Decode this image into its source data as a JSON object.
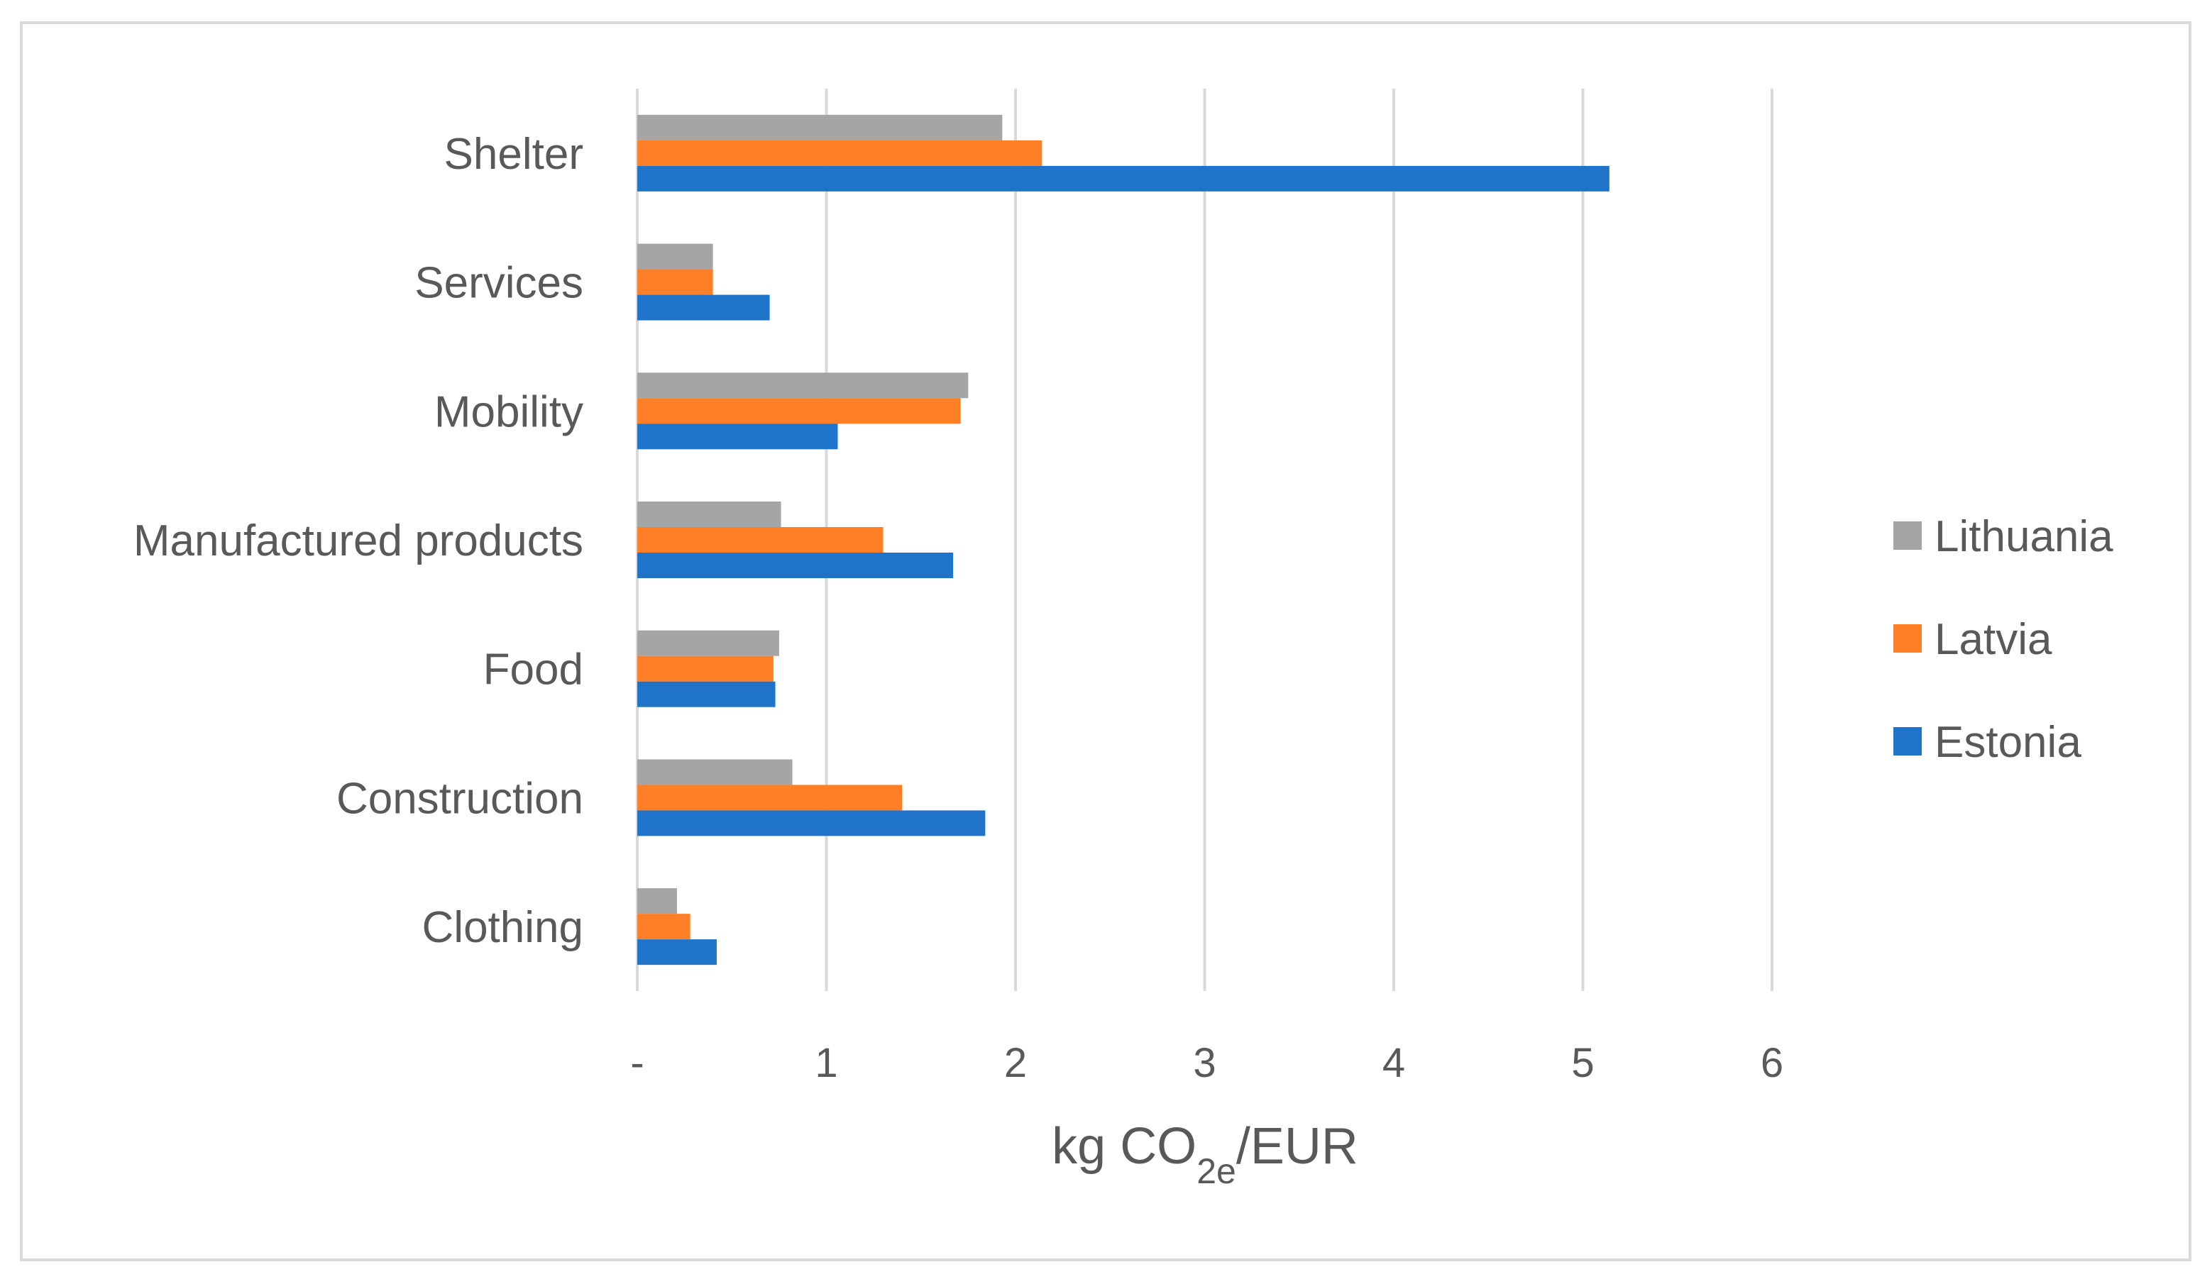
{
  "chart_data": {
    "type": "bar",
    "orientation": "horizontal",
    "title": "",
    "categories": [
      "Clothing",
      "Construction",
      "Food",
      "Manufactured products",
      "Mobility",
      "Services",
      "Shelter"
    ],
    "series": [
      {
        "name": "Estonia",
        "color": "#1f73c9",
        "values": [
          0.42,
          1.84,
          0.73,
          1.67,
          1.06,
          0.7,
          5.14
        ]
      },
      {
        "name": "Latvia",
        "color": "#ff7f27",
        "values": [
          0.28,
          1.4,
          0.72,
          1.3,
          1.71,
          0.4,
          2.14
        ]
      },
      {
        "name": "Lithuania",
        "color": "#a5a5a5",
        "values": [
          0.21,
          0.82,
          0.75,
          0.76,
          1.75,
          0.4,
          1.93
        ]
      }
    ],
    "x_ticks": [
      "-",
      "1",
      "2",
      "3",
      "4",
      "5",
      "6"
    ],
    "xlim": [
      0,
      6
    ],
    "xlabel": {
      "prefix": "kg CO",
      "subscript": "2e",
      "suffix": "/EUR"
    },
    "legend": {
      "position": "right",
      "order": [
        "Lithuania",
        "Latvia",
        "Estonia"
      ]
    },
    "grid": "vertical"
  }
}
